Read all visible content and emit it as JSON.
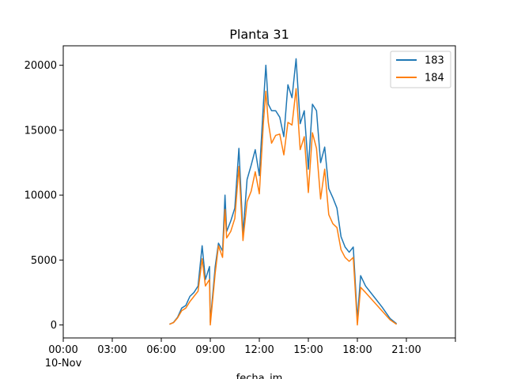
{
  "chart_data": {
    "type": "line",
    "title": "Planta 31",
    "xlabel": "fecha_im",
    "ylabel": "",
    "xlim_hours": [
      0,
      24
    ],
    "ylim": [
      -1000,
      21500
    ],
    "x_ticks": [
      {
        "hour": 0,
        "label": "00:00",
        "sublabel": "10-Nov"
      },
      {
        "hour": 3,
        "label": "03:00"
      },
      {
        "hour": 6,
        "label": "06:00"
      },
      {
        "hour": 9,
        "label": "09:00"
      },
      {
        "hour": 12,
        "label": "12:00"
      },
      {
        "hour": 15,
        "label": "15:00"
      },
      {
        "hour": 18,
        "label": "18:00"
      },
      {
        "hour": 21,
        "label": "21:00"
      },
      {
        "hour": 24,
        "label": ""
      }
    ],
    "y_ticks": [
      0,
      5000,
      10000,
      15000,
      20000
    ],
    "legend_position": "upper right",
    "grid": false,
    "series": [
      {
        "name": "183",
        "color": "#1f77b4",
        "points": [
          [
            6.5,
            50
          ],
          [
            6.75,
            200
          ],
          [
            7.0,
            600
          ],
          [
            7.25,
            1300
          ],
          [
            7.5,
            1500
          ],
          [
            7.75,
            2200
          ],
          [
            8.0,
            2500
          ],
          [
            8.25,
            3000
          ],
          [
            8.5,
            6100
          ],
          [
            8.7,
            3500
          ],
          [
            8.95,
            4500
          ],
          [
            9.0,
            200
          ],
          [
            9.3,
            4500
          ],
          [
            9.5,
            6300
          ],
          [
            9.75,
            5700
          ],
          [
            9.9,
            10000
          ],
          [
            10.0,
            7200
          ],
          [
            10.25,
            8000
          ],
          [
            10.5,
            9000
          ],
          [
            10.75,
            13600
          ],
          [
            11.0,
            7000
          ],
          [
            11.25,
            11200
          ],
          [
            11.5,
            12300
          ],
          [
            11.75,
            13500
          ],
          [
            12.0,
            11500
          ],
          [
            12.25,
            17000
          ],
          [
            12.4,
            20000
          ],
          [
            12.55,
            17000
          ],
          [
            12.75,
            16500
          ],
          [
            13.0,
            16500
          ],
          [
            13.25,
            16000
          ],
          [
            13.5,
            14500
          ],
          [
            13.75,
            18500
          ],
          [
            14.0,
            17500
          ],
          [
            14.25,
            20500
          ],
          [
            14.5,
            15500
          ],
          [
            14.75,
            16500
          ],
          [
            15.0,
            12000
          ],
          [
            15.25,
            17000
          ],
          [
            15.5,
            16500
          ],
          [
            15.75,
            12500
          ],
          [
            16.0,
            13700
          ],
          [
            16.25,
            10500
          ],
          [
            16.5,
            9800
          ],
          [
            16.75,
            9000
          ],
          [
            17.0,
            6800
          ],
          [
            17.25,
            6000
          ],
          [
            17.5,
            5600
          ],
          [
            17.75,
            6000
          ],
          [
            18.0,
            400
          ],
          [
            18.2,
            3800
          ],
          [
            18.5,
            3000
          ],
          [
            19.0,
            2200
          ],
          [
            19.5,
            1400
          ],
          [
            20.0,
            500
          ],
          [
            20.4,
            100
          ]
        ]
      },
      {
        "name": "184",
        "color": "#ff7f0e",
        "points": [
          [
            6.5,
            50
          ],
          [
            6.75,
            180
          ],
          [
            7.0,
            550
          ],
          [
            7.25,
            1100
          ],
          [
            7.5,
            1300
          ],
          [
            7.75,
            1800
          ],
          [
            8.0,
            2200
          ],
          [
            8.25,
            2600
          ],
          [
            8.5,
            5100
          ],
          [
            8.7,
            3000
          ],
          [
            8.95,
            3500
          ],
          [
            9.0,
            0
          ],
          [
            9.3,
            4000
          ],
          [
            9.5,
            6100
          ],
          [
            9.75,
            5200
          ],
          [
            9.9,
            8900
          ],
          [
            10.0,
            6700
          ],
          [
            10.25,
            7200
          ],
          [
            10.5,
            8200
          ],
          [
            10.75,
            12200
          ],
          [
            11.0,
            6500
          ],
          [
            11.25,
            9500
          ],
          [
            11.5,
            10300
          ],
          [
            11.75,
            11800
          ],
          [
            12.0,
            10100
          ],
          [
            12.25,
            15600
          ],
          [
            12.4,
            18000
          ],
          [
            12.55,
            15600
          ],
          [
            12.75,
            14000
          ],
          [
            13.0,
            14600
          ],
          [
            13.25,
            14700
          ],
          [
            13.5,
            13100
          ],
          [
            13.75,
            15600
          ],
          [
            14.0,
            15400
          ],
          [
            14.25,
            18200
          ],
          [
            14.5,
            13500
          ],
          [
            14.75,
            14500
          ],
          [
            15.0,
            10200
          ],
          [
            15.25,
            14800
          ],
          [
            15.5,
            13600
          ],
          [
            15.75,
            9700
          ],
          [
            16.0,
            12000
          ],
          [
            16.25,
            8500
          ],
          [
            16.5,
            7800
          ],
          [
            16.75,
            7500
          ],
          [
            17.0,
            5800
          ],
          [
            17.25,
            5200
          ],
          [
            17.5,
            4900
          ],
          [
            17.75,
            5200
          ],
          [
            18.0,
            0
          ],
          [
            18.2,
            2900
          ],
          [
            18.5,
            2500
          ],
          [
            19.0,
            1800
          ],
          [
            19.5,
            1100
          ],
          [
            20.0,
            400
          ],
          [
            20.4,
            50
          ]
        ]
      }
    ]
  }
}
